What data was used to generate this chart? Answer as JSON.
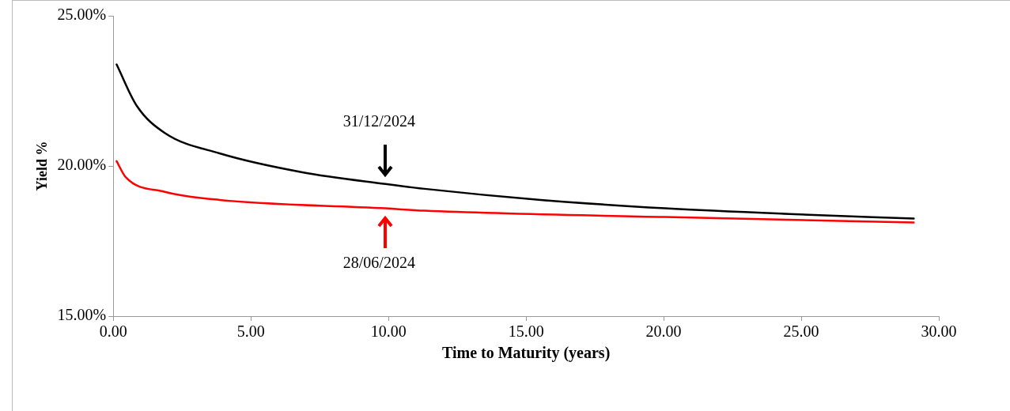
{
  "chart_data": {
    "type": "line",
    "xlabel": "Time to Maturity (years)",
    "ylabel": "Yield %",
    "xlim": [
      0,
      30
    ],
    "xticks": [
      {
        "value": 0,
        "label": "0.00"
      },
      {
        "value": 5,
        "label": "5.00"
      },
      {
        "value": 10,
        "label": "10.00"
      },
      {
        "value": 15,
        "label": "15.00"
      },
      {
        "value": 20,
        "label": "20.00"
      },
      {
        "value": 25,
        "label": "25.00"
      },
      {
        "value": 30,
        "label": "30.00"
      }
    ],
    "ylim": [
      15,
      25
    ],
    "yticks": [
      {
        "value": 15,
        "label": "15.00%"
      },
      {
        "value": 20,
        "label": "20.00%"
      },
      {
        "value": 25,
        "label": "25.00%"
      }
    ],
    "marker": "none",
    "line_style": "solid",
    "legend": false,
    "series": [
      {
        "color": "#000000",
        "x": [
          0.12,
          0.84,
          1.87,
          3.86,
          6.87,
          9.89,
          11.31,
          15.53,
          20.05,
          24.57,
          29.09
        ],
        "values": [
          23.38,
          22.02,
          21.1,
          20.42,
          19.79,
          19.4,
          19.24,
          18.87,
          18.59,
          18.4,
          18.25
        ]
      },
      {
        "color": "#ff0000",
        "x": [
          0.12,
          0.45,
          1.87,
          3.86,
          9.89,
          11.31,
          20.05,
          29.09
        ],
        "values": [
          20.16,
          19.63,
          19.14,
          18.87,
          18.59,
          18.51,
          18.3,
          18.12
        ]
      }
    ],
    "annotations": [
      "31/12/2024",
      "28/06/2024"
    ]
  }
}
